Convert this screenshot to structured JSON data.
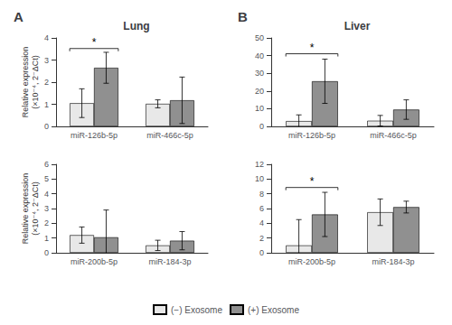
{
  "chart_data": [
    {
      "type": "bar",
      "panel_label": "A",
      "title": "Lung",
      "ylabel": "Relative expression\n(×10⁻⁴, 2⁻ΔCt)",
      "categories": [
        "miR-126b-5p",
        "miR-466c-5p"
      ],
      "series": [
        {
          "name": "(−) Exosome",
          "color": "#e8e8e8",
          "values": [
            1.05,
            1.02
          ],
          "errors": [
            0.65,
            0.18
          ]
        },
        {
          "name": "(+) Exosome",
          "color": "#909090",
          "values": [
            2.65,
            1.18
          ],
          "errors": [
            0.7,
            1.05
          ]
        }
      ],
      "ylim": [
        0,
        4
      ],
      "yticks": [
        0,
        1,
        2,
        3,
        4
      ],
      "grid": false,
      "legend": "bottom",
      "annotations": [
        {
          "text": "*",
          "category": "miR-126b-5p",
          "y": 3.52
        }
      ]
    },
    {
      "type": "bar",
      "panel_label": "B",
      "title": "Liver",
      "categories": [
        "miR-126b-5p",
        "miR-466c-5p"
      ],
      "series": [
        {
          "name": "(−) Exosome",
          "color": "#e8e8e8",
          "values": [
            3.0,
            3.2
          ],
          "errors": [
            3.5,
            3.0
          ]
        },
        {
          "name": "(+) Exosome",
          "color": "#909090",
          "values": [
            25.5,
            9.5
          ],
          "errors": [
            12.5,
            5.5
          ]
        }
      ],
      "ylim": [
        0,
        50
      ],
      "yticks": [
        0,
        10,
        20,
        30,
        40,
        50
      ],
      "grid": false,
      "legend": "bottom",
      "annotations": [
        {
          "text": "*",
          "category": "miR-126b-5p",
          "y": 41.04
        }
      ]
    },
    {
      "type": "bar",
      "ylabel": "Relative expression\n(×10⁻⁴, 2⁻ΔCt)",
      "categories": [
        "miR-200b-5p",
        "miR-184-3p"
      ],
      "series": [
        {
          "name": "(−) Exosome",
          "color": "#e8e8e8",
          "values": [
            1.2,
            0.5
          ],
          "errors": [
            0.55,
            0.35
          ]
        },
        {
          "name": "(+) Exosome",
          "color": "#909090",
          "values": [
            1.05,
            0.82
          ],
          "errors": [
            1.85,
            0.62
          ]
        }
      ],
      "ylim": [
        0,
        6
      ],
      "yticks": [
        0,
        1,
        2,
        3,
        4,
        5,
        6
      ],
      "grid": false,
      "legend": "bottom"
    },
    {
      "type": "bar",
      "categories": [
        "miR-200b-5p",
        "miR-184-3p"
      ],
      "series": [
        {
          "name": "(−) Exosome",
          "color": "#e8e8e8",
          "values": [
            1.0,
            5.5
          ],
          "errors": [
            3.5,
            1.8
          ]
        },
        {
          "name": "(+) Exosome",
          "color": "#909090",
          "values": [
            5.2,
            6.2
          ],
          "errors": [
            3.0,
            0.8
          ]
        }
      ],
      "ylim": [
        0,
        12
      ],
      "yticks": [
        0,
        2,
        4,
        6,
        8,
        10,
        12
      ],
      "grid": false,
      "legend": "bottom",
      "annotations": [
        {
          "text": "*",
          "category": "miR-200b-5p",
          "y": 8.856
        }
      ]
    }
  ]
}
